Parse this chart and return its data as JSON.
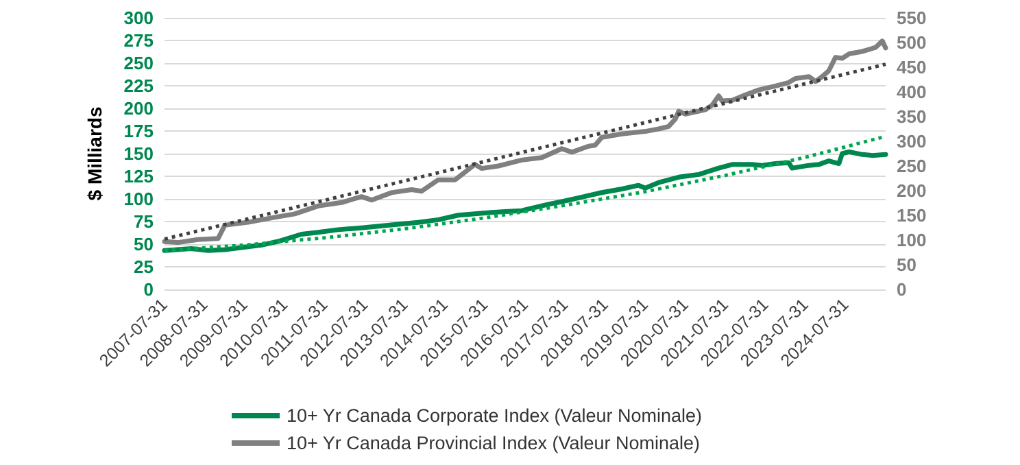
{
  "chart_data": {
    "type": "line",
    "ylabel": "$ Milliards",
    "xlim": [
      "2007-07-31",
      "2025-07-31"
    ],
    "xticks": [
      "2007-07-31",
      "2008-07-31",
      "2009-07-31",
      "2010-07-31",
      "2011-07-31",
      "2012-07-31",
      "2013-07-31",
      "2014-07-31",
      "2015-07-31",
      "2016-07-31",
      "2017-07-31",
      "2018-07-31",
      "2019-07-31",
      "2020-07-31",
      "2021-07-31",
      "2022-07-31",
      "2023-07-31",
      "2024-07-31"
    ],
    "ylim": [
      0,
      300
    ],
    "yticks": [
      0,
      25,
      50,
      75,
      100,
      125,
      150,
      175,
      200,
      225,
      250,
      275,
      300
    ],
    "y2lim": [
      0,
      550
    ],
    "y2ticks": [
      0,
      50,
      100,
      150,
      200,
      250,
      300,
      350,
      400,
      450,
      500,
      550
    ],
    "grid": "y",
    "legend": "bottom",
    "marker": "none",
    "series": [
      {
        "name": "10+ Yr Canada Corporate Index (Valeur Nominale)",
        "color": "#00874f",
        "x": [
          "2007-07-31",
          "2008-03-31",
          "2008-08-31",
          "2009-01-31",
          "2009-12-31",
          "2010-05-31",
          "2010-12-31",
          "2011-05-31",
          "2011-11-30",
          "2012-06-30",
          "2013-05-31",
          "2013-11-30",
          "2014-05-31",
          "2014-11-30",
          "2015-09-30",
          "2016-01-31",
          "2016-06-30",
          "2017-02-28",
          "2017-06-30",
          "2017-12-31",
          "2018-06-30",
          "2018-12-31",
          "2019-05-31",
          "2019-07-31",
          "2019-11-30",
          "2020-05-31",
          "2020-11-30",
          "2021-05-31",
          "2021-09-30",
          "2022-03-31",
          "2022-06-30",
          "2022-10-31",
          "2023-02-28",
          "2023-03-31",
          "2023-08-31",
          "2023-11-30",
          "2024-02-29",
          "2024-05-31",
          "2024-06-30",
          "2024-08-31",
          "2024-12-31",
          "2025-03-31",
          "2025-07-31"
        ],
        "values": [
          43,
          45,
          43,
          44,
          49,
          53,
          61,
          63,
          66,
          68,
          72,
          74,
          77,
          82,
          85,
          86,
          87,
          94,
          97,
          102,
          107,
          111,
          115,
          112,
          118,
          124,
          127,
          134,
          138,
          138,
          137,
          139,
          140,
          134,
          137,
          138,
          142,
          139,
          150,
          152,
          149,
          148,
          149
        ]
      },
      {
        "name": "10+ Yr Canada Provincial Index (Valeur Nominale)",
        "color": "#808080",
        "axis": "y2",
        "x": [
          "2007-07-31",
          "2007-11-30",
          "2008-05-31",
          "2008-11-30",
          "2009-01-31",
          "2009-08-31",
          "2010-04-30",
          "2010-10-31",
          "2011-05-31",
          "2011-12-31",
          "2012-06-30",
          "2012-09-30",
          "2013-03-31",
          "2013-09-30",
          "2013-12-31",
          "2014-05-31",
          "2014-10-31",
          "2015-04-30",
          "2015-06-30",
          "2015-11-30",
          "2016-06-30",
          "2016-12-31",
          "2017-06-30",
          "2017-09-30",
          "2018-02-28",
          "2018-04-30",
          "2018-06-30",
          "2018-12-31",
          "2019-07-31",
          "2019-11-30",
          "2020-02-29",
          "2020-04-30",
          "2020-05-31",
          "2020-07-31",
          "2021-01-31",
          "2021-03-31",
          "2021-05-31",
          "2021-06-30",
          "2021-09-30",
          "2022-01-31",
          "2022-05-31",
          "2022-10-31",
          "2023-02-28",
          "2023-04-30",
          "2023-08-31",
          "2023-10-31",
          "2023-12-31",
          "2024-02-29",
          "2024-04-30",
          "2024-06-30",
          "2024-08-31",
          "2024-12-31",
          "2025-04-30",
          "2025-06-30",
          "2025-07-31"
        ],
        "values": [
          97,
          95,
          101,
          103,
          130,
          136,
          146,
          153,
          169,
          176,
          188,
          181,
          196,
          202,
          199,
          222,
          222,
          253,
          245,
          250,
          262,
          267,
          285,
          278,
          290,
          292,
          308,
          315,
          320,
          325,
          330,
          345,
          361,
          355,
          364,
          373,
          392,
          382,
          383,
          394,
          404,
          412,
          419,
          427,
          431,
          421,
          431,
          443,
          470,
          468,
          477,
          482,
          490,
          503,
          489
        ]
      },
      {
        "color": "#00a651",
        "line_style": "dotted",
        "x": [
          "2007-07-31",
          "2009-07-31",
          "2011-07-31",
          "2013-07-31",
          "2015-07-31",
          "2017-07-31",
          "2019-07-31",
          "2021-07-31",
          "2023-07-31",
          "2025-07-31"
        ],
        "values": [
          43,
          49,
          57,
          67,
          79,
          93,
          108,
          126,
          146,
          169
        ]
      },
      {
        "color": "#404040",
        "line_style": "dotted",
        "axis": "y2",
        "x": [
          "2007-07-31",
          "2025-07-31"
        ],
        "values": [
          102,
          456
        ]
      }
    ]
  }
}
